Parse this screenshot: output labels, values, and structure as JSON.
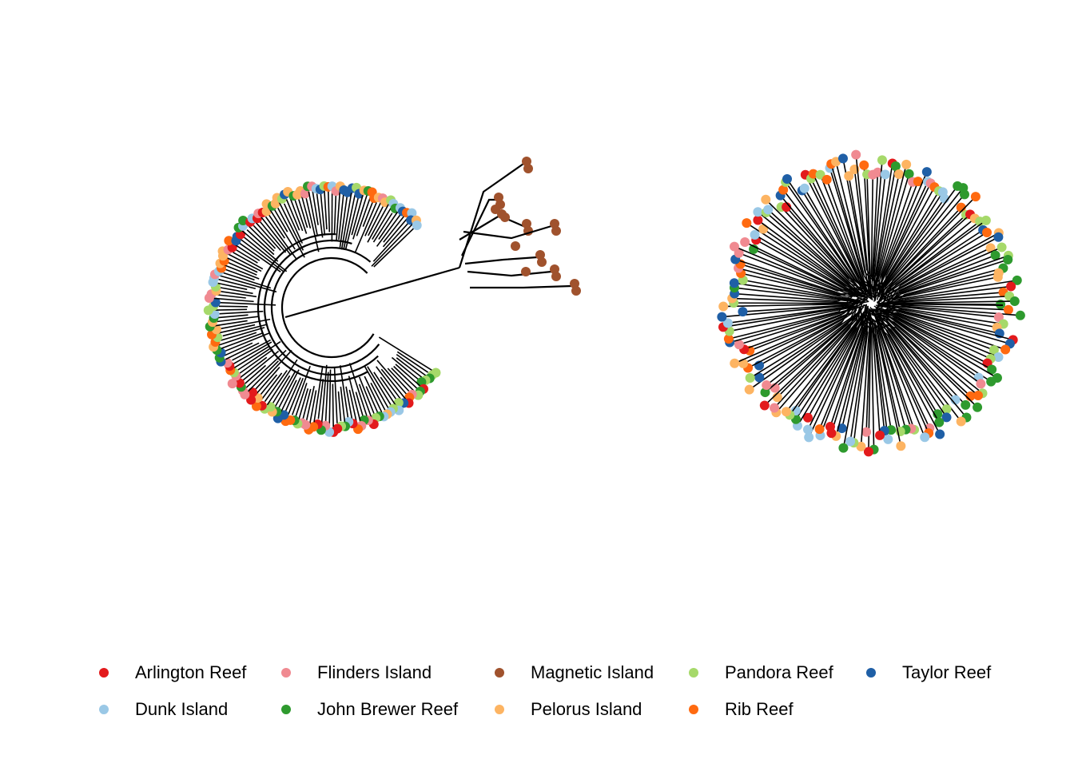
{
  "legend": {
    "items": [
      {
        "label": "Arlington Reef",
        "color": "#e31a1c"
      },
      {
        "label": "Flinders Island",
        "color": "#f08a91"
      },
      {
        "label": "Magnetic Island",
        "color": "#a0522d"
      },
      {
        "label": "Pandora Reef",
        "color": "#a6d96a"
      },
      {
        "label": "Taylor Reef",
        "color": "#1f5fa6"
      },
      {
        "label": "Dunk Island",
        "color": "#9ac8e6"
      },
      {
        "label": "John Brewer Reef",
        "color": "#2e9a2e"
      },
      {
        "label": "Pelorus Island",
        "color": "#fdb462"
      },
      {
        "label": "Rib Reef",
        "color": "#ff6a10"
      }
    ]
  },
  "trees": [
    {
      "name": "circular-phylogeny",
      "layout": "circular"
    },
    {
      "name": "unrooted-phylogeny",
      "layout": "radial"
    }
  ]
}
